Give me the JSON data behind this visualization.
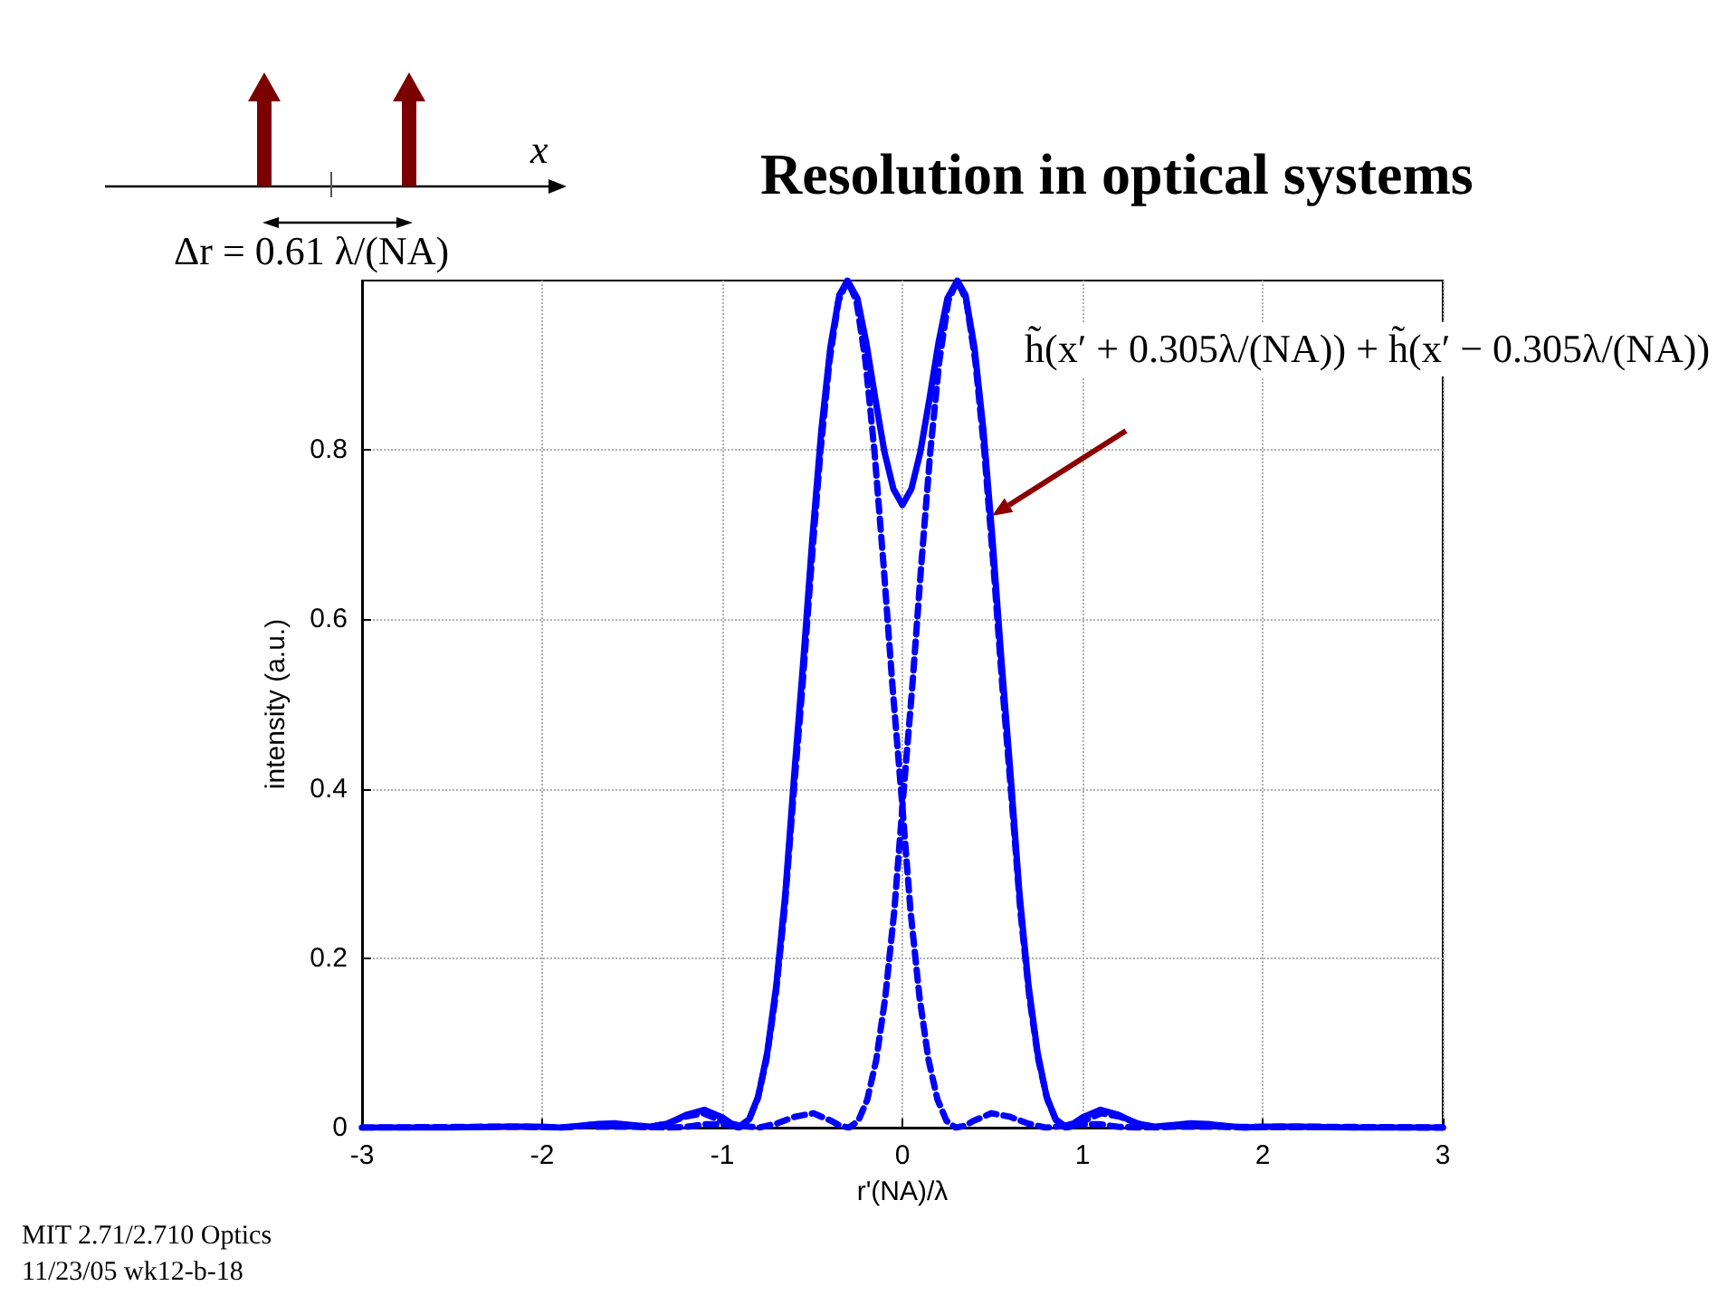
{
  "chart_data": {
    "type": "line",
    "title": "Resolution in optical systems",
    "xlabel": "r'(NA)/λ",
    "ylabel": "intensity (a.u.)",
    "xlim": [
      -3,
      3
    ],
    "xticks": [
      -3,
      -2,
      -1,
      0,
      1,
      2,
      3
    ],
    "ylim": [
      0,
      1
    ],
    "yticks": [
      0,
      0.2,
      0.4,
      0.6,
      0.8
    ],
    "grid": true,
    "marker": "none",
    "annotations": [
      "x",
      "Δr = 0.61 λ/(NA)",
      "h̃(x′ + 0.305λ/(NA)) + h̃(x′ − 0.305λ/(NA))",
      "MIT 2.71/2.710 Optics",
      "11/23/05 wk12-b-18"
    ],
    "series": [
      {
        "color": "#0000ff",
        "line_style": "solid",
        "x": [
          -3,
          -2.5,
          -2.2,
          -2.0,
          -1.9,
          -1.8,
          -1.7,
          -1.6,
          -1.5,
          -1.4,
          -1.3,
          -1.2,
          -1.1,
          -1.0,
          -0.95,
          -0.9,
          -0.85,
          -0.8,
          -0.75,
          -0.7,
          -0.65,
          -0.6,
          -0.55,
          -0.5,
          -0.45,
          -0.4,
          -0.35,
          -0.305,
          -0.25,
          -0.2,
          -0.15,
          -0.1,
          -0.05,
          0,
          0.05,
          0.1,
          0.15,
          0.2,
          0.25,
          0.305,
          0.35,
          0.4,
          0.45,
          0.5,
          0.55,
          0.6,
          0.65,
          0.7,
          0.75,
          0.8,
          0.85,
          0.9,
          0.95,
          1.0,
          1.1,
          1.2,
          1.3,
          1.4,
          1.5,
          1.6,
          1.7,
          1.8,
          1.9,
          2.0,
          2.2,
          2.5,
          3
        ],
        "values": [
          0,
          0,
          0.001,
          0.001,
          0,
          0.002,
          0.004,
          0.005,
          0.003,
          0.001,
          0.005,
          0.015,
          0.021,
          0.012,
          0.005,
          0.002,
          0.01,
          0.037,
          0.089,
          0.168,
          0.276,
          0.418,
          0.551,
          0.695,
          0.823,
          0.921,
          0.983,
          1,
          0.979,
          0.926,
          0.86,
          0.798,
          0.754,
          0.735,
          0.754,
          0.798,
          0.86,
          0.926,
          0.979,
          1,
          0.983,
          0.921,
          0.823,
          0.695,
          0.551,
          0.418,
          0.276,
          0.168,
          0.089,
          0.037,
          0.01,
          0.002,
          0.005,
          0.012,
          0.021,
          0.015,
          0.005,
          0.001,
          0.003,
          0.005,
          0.004,
          0.002,
          0,
          0.001,
          0.001,
          0,
          0
        ]
      },
      {
        "color": "#0000ff",
        "line_style": "dashed",
        "x": [
          -3,
          -2.305,
          -2.105,
          -1.905,
          -1.805,
          -1.705,
          -1.605,
          -1.505,
          -1.405,
          -1.305,
          -1.205,
          -1.105,
          -1.005,
          -0.955,
          -0.905,
          -0.855,
          -0.805,
          -0.755,
          -0.705,
          -0.655,
          -0.605,
          -0.555,
          -0.505,
          -0.455,
          -0.405,
          -0.355,
          -0.305,
          -0.255,
          -0.205,
          -0.155,
          -0.105,
          -0.055,
          -0.005,
          0.045,
          0.095,
          0.145,
          0.195,
          0.245,
          0.295,
          0.345,
          0.395,
          0.495,
          0.595,
          0.695,
          0.795,
          0.895,
          0.995,
          1.095,
          1.195,
          1.295,
          1.495,
          1.695,
          3
        ],
        "values": [
          0,
          0.001,
          0.001,
          0,
          0.001,
          0.004,
          0.004,
          0.002,
          0,
          0.005,
          0.013,
          0.017,
          0.008,
          0.002,
          0,
          0.008,
          0.033,
          0.08,
          0.154,
          0.256,
          0.392,
          0.521,
          0.665,
          0.798,
          0.905,
          0.976,
          1,
          0.976,
          0.905,
          0.798,
          0.665,
          0.521,
          0.392,
          0.256,
          0.154,
          0.08,
          0.033,
          0.008,
          0,
          0.002,
          0.008,
          0.017,
          0.013,
          0.005,
          0,
          0.002,
          0.004,
          0.004,
          0.001,
          0,
          0.001,
          0.001,
          0
        ]
      },
      {
        "color": "#0000ff",
        "line_style": "dashed",
        "x": [
          -1.695,
          -1.495,
          -1.295,
          -1.195,
          -1.095,
          -0.995,
          -0.895,
          -0.795,
          -0.695,
          -0.595,
          -0.495,
          -0.395,
          -0.345,
          -0.295,
          -0.245,
          -0.195,
          -0.145,
          -0.095,
          -0.045,
          0.005,
          0.055,
          0.105,
          0.155,
          0.205,
          0.255,
          0.305,
          0.355,
          0.405,
          0.455,
          0.505,
          0.555,
          0.605,
          0.655,
          0.705,
          0.755,
          0.805,
          0.855,
          0.905,
          0.955,
          1.005,
          1.105,
          1.205,
          1.305,
          1.405,
          1.505,
          1.605,
          1.705,
          1.805,
          1.905,
          2.105,
          2.305,
          3
        ],
        "values": [
          0.001,
          0.001,
          0,
          0.001,
          0.004,
          0.004,
          0.002,
          0,
          0.005,
          0.013,
          0.017,
          0.008,
          0.002,
          0,
          0.008,
          0.033,
          0.08,
          0.154,
          0.256,
          0.392,
          0.521,
          0.665,
          0.798,
          0.905,
          0.976,
          1,
          0.976,
          0.905,
          0.798,
          0.665,
          0.521,
          0.392,
          0.256,
          0.154,
          0.08,
          0.033,
          0.008,
          0,
          0.002,
          0.008,
          0.017,
          0.013,
          0.005,
          0,
          0.002,
          0.004,
          0.004,
          0.001,
          0,
          0.001,
          0.001,
          0
        ]
      }
    ]
  }
}
